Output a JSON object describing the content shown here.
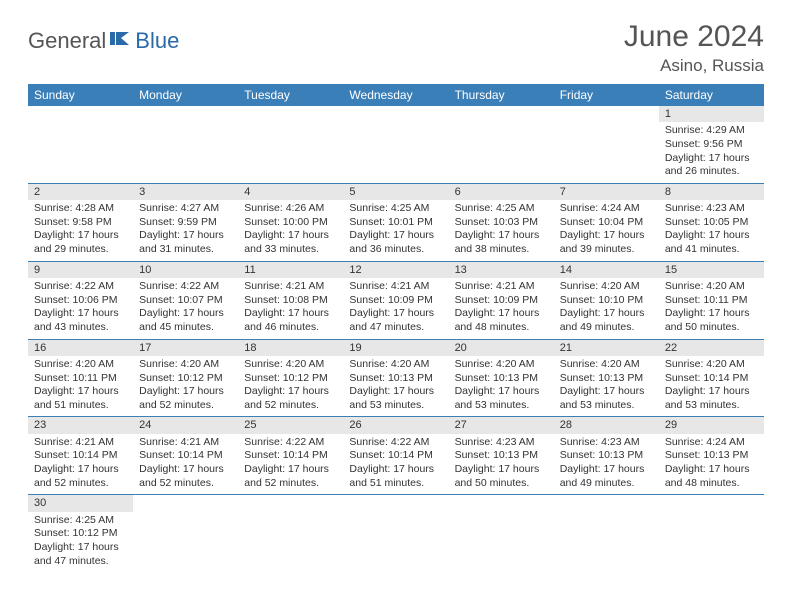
{
  "brand": {
    "word1": "General",
    "word2": "Blue"
  },
  "title": "June 2024",
  "location": "Asino, Russia",
  "colors": {
    "header_bg": "#3b7fb8",
    "header_text": "#ffffff",
    "daynum_bg": "#e7e7e7",
    "row_divider": "#3b7fb8",
    "title_color": "#555555",
    "brand_blue": "#2b6aa8"
  },
  "weekdays": [
    "Sunday",
    "Monday",
    "Tuesday",
    "Wednesday",
    "Thursday",
    "Friday",
    "Saturday"
  ],
  "weeks": [
    [
      null,
      null,
      null,
      null,
      null,
      null,
      {
        "d": "1",
        "sr": "Sunrise: 4:29 AM",
        "ss": "Sunset: 9:56 PM",
        "dl1": "Daylight: 17 hours",
        "dl2": "and 26 minutes."
      }
    ],
    [
      {
        "d": "2",
        "sr": "Sunrise: 4:28 AM",
        "ss": "Sunset: 9:58 PM",
        "dl1": "Daylight: 17 hours",
        "dl2": "and 29 minutes."
      },
      {
        "d": "3",
        "sr": "Sunrise: 4:27 AM",
        "ss": "Sunset: 9:59 PM",
        "dl1": "Daylight: 17 hours",
        "dl2": "and 31 minutes."
      },
      {
        "d": "4",
        "sr": "Sunrise: 4:26 AM",
        "ss": "Sunset: 10:00 PM",
        "dl1": "Daylight: 17 hours",
        "dl2": "and 33 minutes."
      },
      {
        "d": "5",
        "sr": "Sunrise: 4:25 AM",
        "ss": "Sunset: 10:01 PM",
        "dl1": "Daylight: 17 hours",
        "dl2": "and 36 minutes."
      },
      {
        "d": "6",
        "sr": "Sunrise: 4:25 AM",
        "ss": "Sunset: 10:03 PM",
        "dl1": "Daylight: 17 hours",
        "dl2": "and 38 minutes."
      },
      {
        "d": "7",
        "sr": "Sunrise: 4:24 AM",
        "ss": "Sunset: 10:04 PM",
        "dl1": "Daylight: 17 hours",
        "dl2": "and 39 minutes."
      },
      {
        "d": "8",
        "sr": "Sunrise: 4:23 AM",
        "ss": "Sunset: 10:05 PM",
        "dl1": "Daylight: 17 hours",
        "dl2": "and 41 minutes."
      }
    ],
    [
      {
        "d": "9",
        "sr": "Sunrise: 4:22 AM",
        "ss": "Sunset: 10:06 PM",
        "dl1": "Daylight: 17 hours",
        "dl2": "and 43 minutes."
      },
      {
        "d": "10",
        "sr": "Sunrise: 4:22 AM",
        "ss": "Sunset: 10:07 PM",
        "dl1": "Daylight: 17 hours",
        "dl2": "and 45 minutes."
      },
      {
        "d": "11",
        "sr": "Sunrise: 4:21 AM",
        "ss": "Sunset: 10:08 PM",
        "dl1": "Daylight: 17 hours",
        "dl2": "and 46 minutes."
      },
      {
        "d": "12",
        "sr": "Sunrise: 4:21 AM",
        "ss": "Sunset: 10:09 PM",
        "dl1": "Daylight: 17 hours",
        "dl2": "and 47 minutes."
      },
      {
        "d": "13",
        "sr": "Sunrise: 4:21 AM",
        "ss": "Sunset: 10:09 PM",
        "dl1": "Daylight: 17 hours",
        "dl2": "and 48 minutes."
      },
      {
        "d": "14",
        "sr": "Sunrise: 4:20 AM",
        "ss": "Sunset: 10:10 PM",
        "dl1": "Daylight: 17 hours",
        "dl2": "and 49 minutes."
      },
      {
        "d": "15",
        "sr": "Sunrise: 4:20 AM",
        "ss": "Sunset: 10:11 PM",
        "dl1": "Daylight: 17 hours",
        "dl2": "and 50 minutes."
      }
    ],
    [
      {
        "d": "16",
        "sr": "Sunrise: 4:20 AM",
        "ss": "Sunset: 10:11 PM",
        "dl1": "Daylight: 17 hours",
        "dl2": "and 51 minutes."
      },
      {
        "d": "17",
        "sr": "Sunrise: 4:20 AM",
        "ss": "Sunset: 10:12 PM",
        "dl1": "Daylight: 17 hours",
        "dl2": "and 52 minutes."
      },
      {
        "d": "18",
        "sr": "Sunrise: 4:20 AM",
        "ss": "Sunset: 10:12 PM",
        "dl1": "Daylight: 17 hours",
        "dl2": "and 52 minutes."
      },
      {
        "d": "19",
        "sr": "Sunrise: 4:20 AM",
        "ss": "Sunset: 10:13 PM",
        "dl1": "Daylight: 17 hours",
        "dl2": "and 53 minutes."
      },
      {
        "d": "20",
        "sr": "Sunrise: 4:20 AM",
        "ss": "Sunset: 10:13 PM",
        "dl1": "Daylight: 17 hours",
        "dl2": "and 53 minutes."
      },
      {
        "d": "21",
        "sr": "Sunrise: 4:20 AM",
        "ss": "Sunset: 10:13 PM",
        "dl1": "Daylight: 17 hours",
        "dl2": "and 53 minutes."
      },
      {
        "d": "22",
        "sr": "Sunrise: 4:20 AM",
        "ss": "Sunset: 10:14 PM",
        "dl1": "Daylight: 17 hours",
        "dl2": "and 53 minutes."
      }
    ],
    [
      {
        "d": "23",
        "sr": "Sunrise: 4:21 AM",
        "ss": "Sunset: 10:14 PM",
        "dl1": "Daylight: 17 hours",
        "dl2": "and 52 minutes."
      },
      {
        "d": "24",
        "sr": "Sunrise: 4:21 AM",
        "ss": "Sunset: 10:14 PM",
        "dl1": "Daylight: 17 hours",
        "dl2": "and 52 minutes."
      },
      {
        "d": "25",
        "sr": "Sunrise: 4:22 AM",
        "ss": "Sunset: 10:14 PM",
        "dl1": "Daylight: 17 hours",
        "dl2": "and 52 minutes."
      },
      {
        "d": "26",
        "sr": "Sunrise: 4:22 AM",
        "ss": "Sunset: 10:14 PM",
        "dl1": "Daylight: 17 hours",
        "dl2": "and 51 minutes."
      },
      {
        "d": "27",
        "sr": "Sunrise: 4:23 AM",
        "ss": "Sunset: 10:13 PM",
        "dl1": "Daylight: 17 hours",
        "dl2": "and 50 minutes."
      },
      {
        "d": "28",
        "sr": "Sunrise: 4:23 AM",
        "ss": "Sunset: 10:13 PM",
        "dl1": "Daylight: 17 hours",
        "dl2": "and 49 minutes."
      },
      {
        "d": "29",
        "sr": "Sunrise: 4:24 AM",
        "ss": "Sunset: 10:13 PM",
        "dl1": "Daylight: 17 hours",
        "dl2": "and 48 minutes."
      }
    ],
    [
      {
        "d": "30",
        "sr": "Sunrise: 4:25 AM",
        "ss": "Sunset: 10:12 PM",
        "dl1": "Daylight: 17 hours",
        "dl2": "and 47 minutes."
      },
      null,
      null,
      null,
      null,
      null,
      null
    ]
  ]
}
